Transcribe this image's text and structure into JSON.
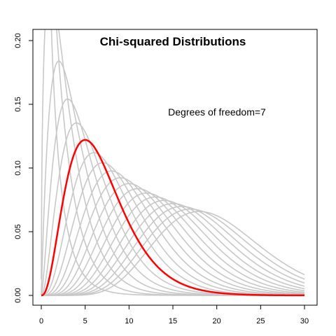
{
  "chart_data": {
    "type": "line",
    "title": "Chi-squared Distributions",
    "annotation": "Degrees of freedom=7",
    "xlabel": "",
    "ylabel": "",
    "xlim": [
      0,
      30
    ],
    "ylim": [
      0,
      0.2
    ],
    "x_ticks": [
      "0",
      "5",
      "10",
      "15",
      "20",
      "25",
      "30"
    ],
    "y_ticks": [
      "0.00",
      "0.05",
      "0.10",
      "0.15",
      "0.20"
    ],
    "grid": false,
    "legend": "none",
    "x_step": 0.5,
    "series": [
      {
        "df": 1,
        "color": "#c8c8c8",
        "highlight": false
      },
      {
        "df": 2,
        "color": "#c8c8c8",
        "highlight": false
      },
      {
        "df": 3,
        "color": "#c8c8c8",
        "highlight": false
      },
      {
        "df": 4,
        "color": "#c8c8c8",
        "highlight": false
      },
      {
        "df": 5,
        "color": "#c8c8c8",
        "highlight": false
      },
      {
        "df": 6,
        "color": "#c8c8c8",
        "highlight": false
      },
      {
        "df": 8,
        "color": "#c8c8c8",
        "highlight": false
      },
      {
        "df": 9,
        "color": "#c8c8c8",
        "highlight": false
      },
      {
        "df": 10,
        "color": "#c8c8c8",
        "highlight": false
      },
      {
        "df": 11,
        "color": "#c8c8c8",
        "highlight": false
      },
      {
        "df": 12,
        "color": "#c8c8c8",
        "highlight": false
      },
      {
        "df": 13,
        "color": "#c8c8c8",
        "highlight": false
      },
      {
        "df": 14,
        "color": "#c8c8c8",
        "highlight": false
      },
      {
        "df": 15,
        "color": "#c8c8c8",
        "highlight": false
      },
      {
        "df": 16,
        "color": "#c8c8c8",
        "highlight": false
      },
      {
        "df": 17,
        "color": "#c8c8c8",
        "highlight": false
      },
      {
        "df": 18,
        "color": "#c8c8c8",
        "highlight": false
      },
      {
        "df": 19,
        "color": "#c8c8c8",
        "highlight": false
      },
      {
        "df": 20,
        "color": "#c8c8c8",
        "highlight": false
      },
      {
        "df": 7,
        "color": "#ff0000",
        "highlight": true
      }
    ]
  }
}
